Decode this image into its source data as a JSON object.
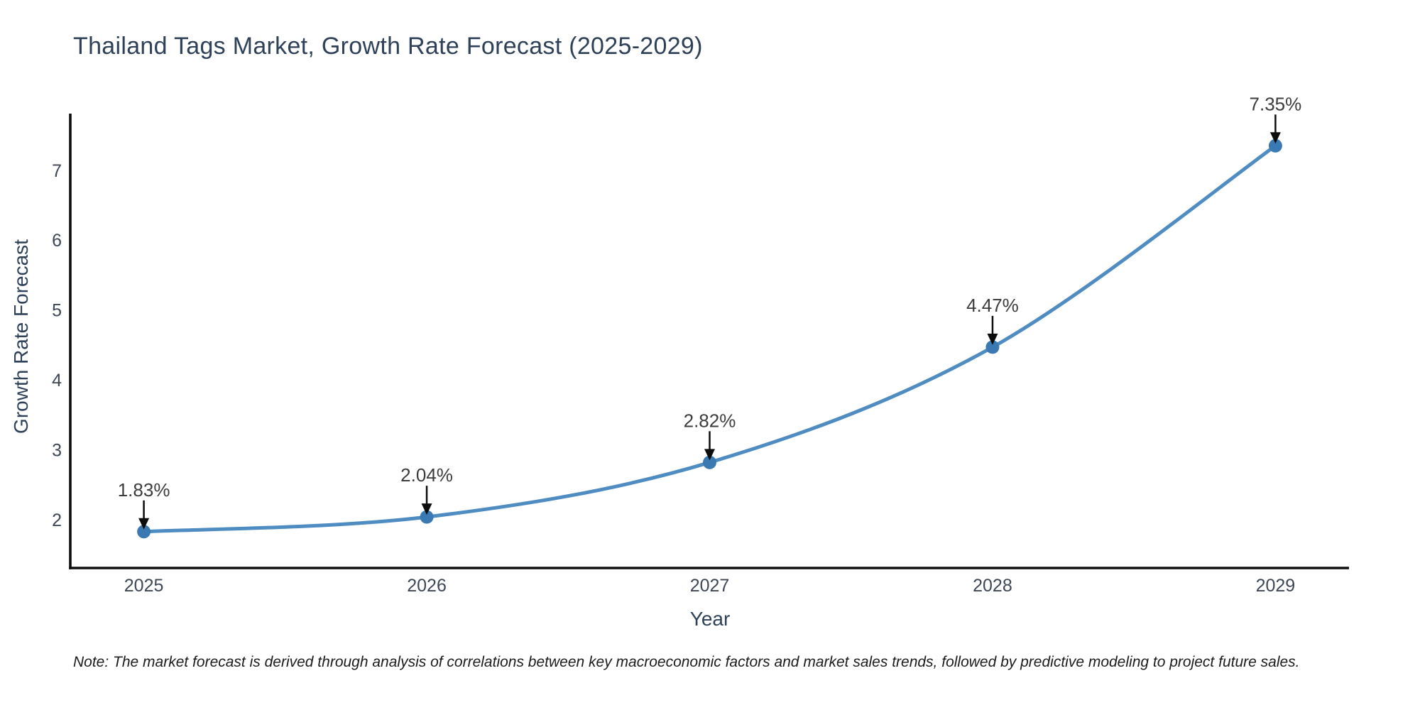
{
  "chart_data": {
    "type": "line",
    "title": "Thailand Tags Market, Growth Rate Forecast (2025-2029)",
    "xlabel": "Year",
    "ylabel": "Growth Rate Forecast",
    "x": [
      2025,
      2026,
      2027,
      2028,
      2029
    ],
    "series": [
      {
        "name": "Growth Rate Forecast",
        "values": [
          1.83,
          2.04,
          2.82,
          4.47,
          7.35
        ]
      }
    ],
    "point_labels": [
      "1.83%",
      "2.04%",
      "2.82%",
      "4.47%",
      "7.35%"
    ],
    "xticks": [
      2025,
      2026,
      2027,
      2028,
      2029
    ],
    "yticks": [
      2,
      3,
      4,
      5,
      6,
      7
    ],
    "xlim": [
      2024.74,
      2029.26
    ],
    "ylim": [
      1.31,
      7.81
    ],
    "grid": false,
    "legend_position": "none",
    "note": "Note: The market forecast is derived through analysis of correlations between key macroeconomic factors and market sales trends, followed by predictive modeling to project future sales.",
    "colors": {
      "line": "#4e8cc2",
      "marker": "#3b79b2",
      "arrow": "#0d0d0d",
      "spine": "#0e0e0e",
      "title_text": "#2e4158",
      "axis_label_text": "#2e4158",
      "tick_text": "#3d4756",
      "annotation_text": "#3c3c3c",
      "note_text": "#1c1c1c",
      "background": "#ffffff"
    }
  }
}
